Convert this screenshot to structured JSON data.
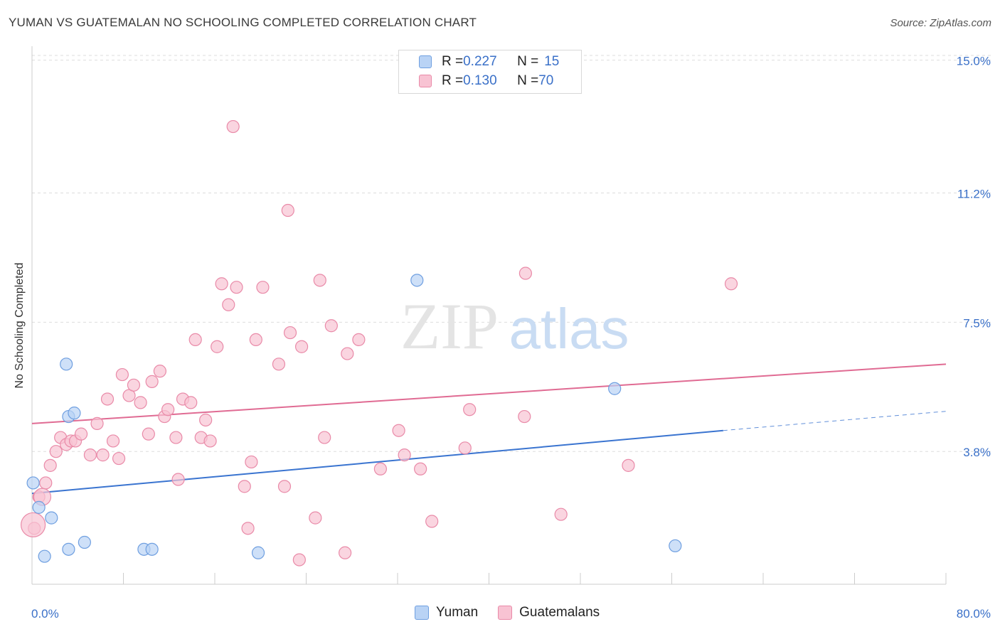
{
  "title": "YUMAN VS GUATEMALAN NO SCHOOLING COMPLETED CORRELATION CHART",
  "source": "Source: ZipAtlas.com",
  "watermark": {
    "zip": "ZIP",
    "atlas": "atlas"
  },
  "legend": {
    "rows": [
      {
        "r_label": "R = ",
        "r_value": "0.227",
        "n_label": "N = ",
        "n_value": "15"
      },
      {
        "r_label": "R = ",
        "r_value": "0.130",
        "n_label": "N = ",
        "n_value": "70"
      }
    ]
  },
  "colors": {
    "yuman_fill": "#b9d3f5",
    "yuman_stroke": "#6f9fe0",
    "yuman_line": "#3a74d0",
    "guat_fill": "#f8c3d3",
    "guat_stroke": "#e98aa8",
    "guat_line": "#e06b93",
    "value_blue": "#3a70c8",
    "grid": "#dddddd"
  },
  "chart_data": {
    "type": "scatter",
    "title": "YUMAN VS GUATEMALAN NO SCHOOLING COMPLETED CORRELATION CHART",
    "xlabel": "",
    "ylabel": "No Schooling Completed",
    "xlim": [
      0,
      80
    ],
    "ylim": [
      0,
      15.4
    ],
    "x_tick_labels": [
      "0.0%",
      "80.0%"
    ],
    "y_ticks": [
      3.8,
      7.5,
      11.2,
      15.0
    ],
    "y_tick_labels": [
      "3.8%",
      "7.5%",
      "11.2%",
      "15.0%"
    ],
    "grid": true,
    "legend_position": "top-center",
    "series": [
      {
        "name": "Yuman",
        "r": 0.227,
        "n": 15,
        "trend": {
          "x0": 0,
          "y0": 2.6,
          "x1": 60.5,
          "y1": 4.4,
          "dashed_to_x": 80,
          "dashed_to_y": 4.95
        },
        "points": [
          [
            0.1,
            2.9
          ],
          [
            0.6,
            2.2
          ],
          [
            1.1,
            0.8
          ],
          [
            1.7,
            1.9
          ],
          [
            3.2,
            4.8
          ],
          [
            3.7,
            4.9
          ],
          [
            3.2,
            1.0
          ],
          [
            4.6,
            1.2
          ],
          [
            3.0,
            6.3
          ],
          [
            9.8,
            1.0
          ],
          [
            10.5,
            1.0
          ],
          [
            19.8,
            0.9
          ],
          [
            33.7,
            8.7
          ],
          [
            51.0,
            5.6
          ],
          [
            56.3,
            1.1
          ]
        ]
      },
      {
        "name": "Guatemalans",
        "r": 0.13,
        "n": 70,
        "trend": {
          "x0": 0,
          "y0": 4.6,
          "x1": 80,
          "y1": 6.3
        },
        "points": [
          [
            0.2,
            1.6
          ],
          [
            0.6,
            2.5
          ],
          [
            1.2,
            2.9
          ],
          [
            1.6,
            3.4
          ],
          [
            2.1,
            3.8
          ],
          [
            2.5,
            4.2
          ],
          [
            3.0,
            4.0
          ],
          [
            3.4,
            4.1
          ],
          [
            3.8,
            4.1
          ],
          [
            4.3,
            4.3
          ],
          [
            5.1,
            3.7
          ],
          [
            5.7,
            4.6
          ],
          [
            6.2,
            3.7
          ],
          [
            6.6,
            5.3
          ],
          [
            7.1,
            4.1
          ],
          [
            7.6,
            3.6
          ],
          [
            7.9,
            6.0
          ],
          [
            8.5,
            5.4
          ],
          [
            8.9,
            5.7
          ],
          [
            9.5,
            5.2
          ],
          [
            10.2,
            4.3
          ],
          [
            10.5,
            5.8
          ],
          [
            11.2,
            6.1
          ],
          [
            11.6,
            4.8
          ],
          [
            11.9,
            5.0
          ],
          [
            12.6,
            4.2
          ],
          [
            12.8,
            3.0
          ],
          [
            13.2,
            5.3
          ],
          [
            13.9,
            5.2
          ],
          [
            14.3,
            7.0
          ],
          [
            14.8,
            4.2
          ],
          [
            15.2,
            4.7
          ],
          [
            15.6,
            4.1
          ],
          [
            16.2,
            6.8
          ],
          [
            16.6,
            8.6
          ],
          [
            17.2,
            8.0
          ],
          [
            17.6,
            13.1
          ],
          [
            17.9,
            8.5
          ],
          [
            18.6,
            2.8
          ],
          [
            18.9,
            1.6
          ],
          [
            19.2,
            3.5
          ],
          [
            19.6,
            7.0
          ],
          [
            20.2,
            8.5
          ],
          [
            21.6,
            6.3
          ],
          [
            22.1,
            2.8
          ],
          [
            22.4,
            10.7
          ],
          [
            22.6,
            7.2
          ],
          [
            23.4,
            0.7
          ],
          [
            23.6,
            6.8
          ],
          [
            24.8,
            1.9
          ],
          [
            25.2,
            8.7
          ],
          [
            25.6,
            4.2
          ],
          [
            26.2,
            7.4
          ],
          [
            27.4,
            0.9
          ],
          [
            27.6,
            6.6
          ],
          [
            28.6,
            7.0
          ],
          [
            30.5,
            3.3
          ],
          [
            32.1,
            4.4
          ],
          [
            32.6,
            3.7
          ],
          [
            34.0,
            3.3
          ],
          [
            35.0,
            1.8
          ],
          [
            37.9,
            3.9
          ],
          [
            38.3,
            5.0
          ],
          [
            43.1,
            4.8
          ],
          [
            43.2,
            8.9
          ],
          [
            46.3,
            2.0
          ],
          [
            52.2,
            3.4
          ],
          [
            61.2,
            8.6
          ],
          [
            0.1,
            1.7
          ],
          [
            0.9,
            2.5
          ]
        ]
      }
    ]
  },
  "bottom_legend": {
    "items": [
      "Yuman",
      "Guatemalans"
    ]
  }
}
